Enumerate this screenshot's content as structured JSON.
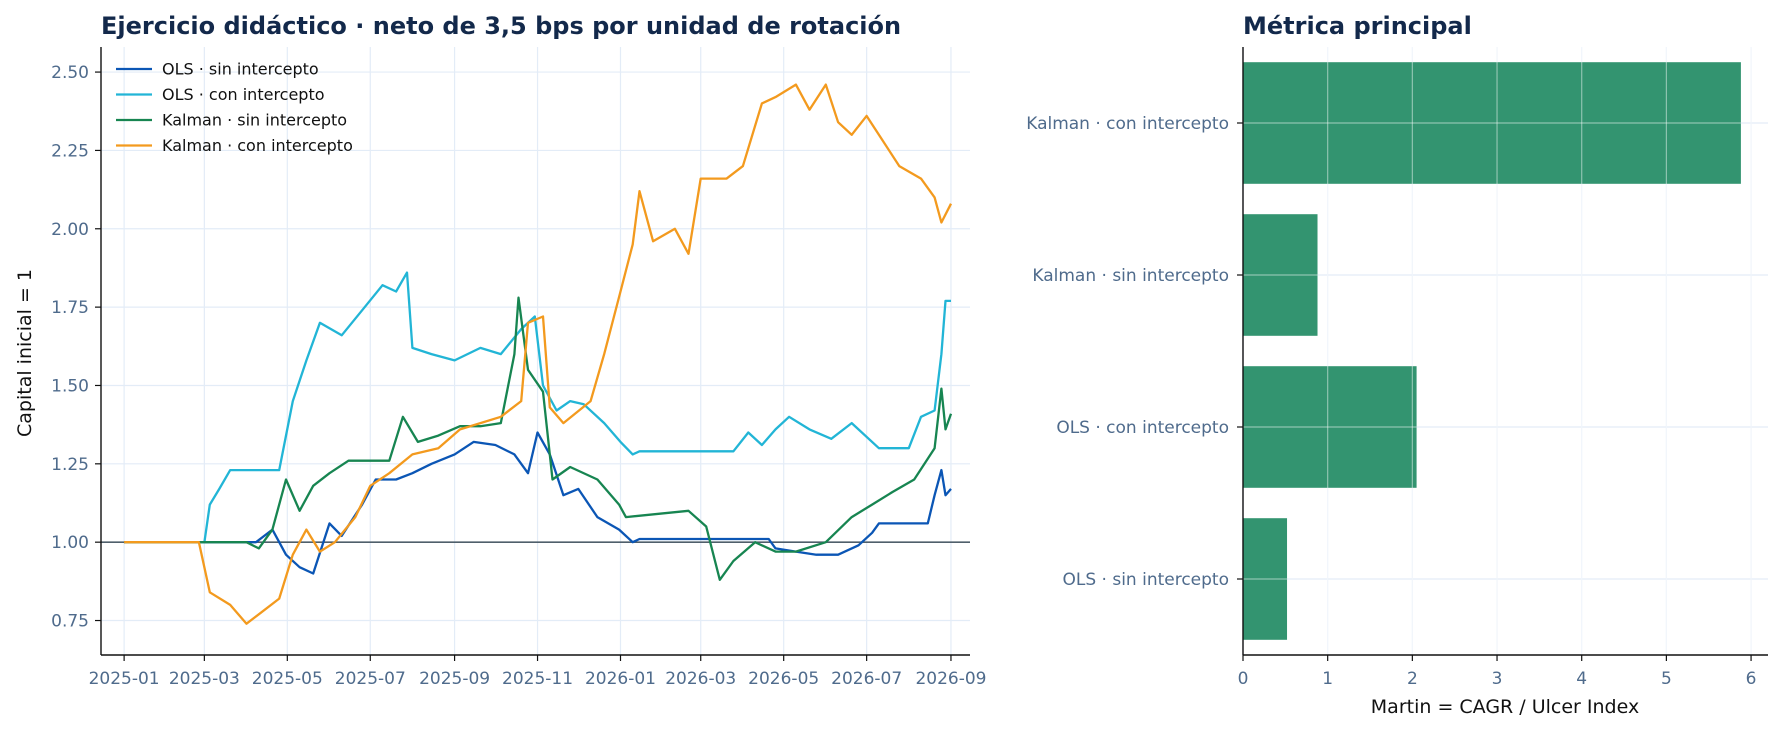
{
  "chart_data": [
    {
      "type": "line",
      "title": "Ejercicio didáctico · neto de 3,5 bps por unidad de rotación",
      "xlabel": "",
      "ylabel": "Capital inicial = 1",
      "xlim": [
        "2024-12-15",
        "2026-09-15"
      ],
      "ylim": [
        0.64,
        2.58
      ],
      "x_ticks": [
        "2025-01",
        "2025-03",
        "2025-05",
        "2025-07",
        "2025-09",
        "2025-11",
        "2026-01",
        "2026-03",
        "2026-05",
        "2026-07",
        "2026-09"
      ],
      "y_ticks": [
        "0.75",
        "1.00",
        "1.25",
        "1.50",
        "1.75",
        "2.00",
        "2.25",
        "2.50"
      ],
      "reference_line": 1.0,
      "grid": true,
      "legend_position": "top-left",
      "series": [
        {
          "name": "OLS · sin intercepto",
          "color": "#0b56b5",
          "points": [
            [
              "2025-01-01",
              1.0
            ],
            [
              "2025-04-08",
              1.0
            ],
            [
              "2025-04-20",
              1.04
            ],
            [
              "2025-04-30",
              0.96
            ],
            [
              "2025-05-10",
              0.92
            ],
            [
              "2025-05-20",
              0.9
            ],
            [
              "2025-06-01",
              1.06
            ],
            [
              "2025-06-10",
              1.02
            ],
            [
              "2025-06-25",
              1.12
            ],
            [
              "2025-07-05",
              1.2
            ],
            [
              "2025-07-20",
              1.2
            ],
            [
              "2025-08-01",
              1.22
            ],
            [
              "2025-08-15",
              1.25
            ],
            [
              "2025-09-01",
              1.28
            ],
            [
              "2025-09-15",
              1.32
            ],
            [
              "2025-10-01",
              1.31
            ],
            [
              "2025-10-15",
              1.28
            ],
            [
              "2025-10-25",
              1.22
            ],
            [
              "2025-11-01",
              1.35
            ],
            [
              "2025-11-10",
              1.28
            ],
            [
              "2025-11-20",
              1.15
            ],
            [
              "2025-12-01",
              1.17
            ],
            [
              "2025-12-15",
              1.08
            ],
            [
              "2025-12-31",
              1.04
            ],
            [
              "2026-01-10",
              1.0
            ],
            [
              "2026-01-15",
              1.01
            ],
            [
              "2026-03-01",
              1.01
            ],
            [
              "2026-04-20",
              1.01
            ],
            [
              "2026-04-25",
              0.98
            ],
            [
              "2026-05-10",
              0.97
            ],
            [
              "2026-05-25",
              0.96
            ],
            [
              "2026-06-10",
              0.96
            ],
            [
              "2026-06-25",
              0.99
            ],
            [
              "2026-07-05",
              1.03
            ],
            [
              "2026-07-10",
              1.06
            ],
            [
              "2026-08-15",
              1.06
            ],
            [
              "2026-08-20",
              1.15
            ],
            [
              "2026-08-25",
              1.23
            ],
            [
              "2026-08-28",
              1.15
            ],
            [
              "2026-09-01",
              1.17
            ]
          ]
        },
        {
          "name": "OLS · con intercepto",
          "color": "#22b5d6",
          "points": [
            [
              "2025-01-01",
              1.0
            ],
            [
              "2025-03-01",
              1.0
            ],
            [
              "2025-03-05",
              1.12
            ],
            [
              "2025-03-12",
              1.17
            ],
            [
              "2025-03-20",
              1.23
            ],
            [
              "2025-04-25",
              1.23
            ],
            [
              "2025-05-05",
              1.45
            ],
            [
              "2025-05-15",
              1.58
            ],
            [
              "2025-05-25",
              1.7
            ],
            [
              "2025-06-10",
              1.66
            ],
            [
              "2025-06-25",
              1.74
            ],
            [
              "2025-07-10",
              1.82
            ],
            [
              "2025-07-20",
              1.8
            ],
            [
              "2025-07-28",
              1.86
            ],
            [
              "2025-08-01",
              1.62
            ],
            [
              "2025-08-15",
              1.6
            ],
            [
              "2025-09-01",
              1.58
            ],
            [
              "2025-09-20",
              1.62
            ],
            [
              "2025-10-05",
              1.6
            ],
            [
              "2025-10-20",
              1.68
            ],
            [
              "2025-10-30",
              1.72
            ],
            [
              "2025-11-05",
              1.5
            ],
            [
              "2025-11-15",
              1.42
            ],
            [
              "2025-11-25",
              1.45
            ],
            [
              "2025-12-05",
              1.44
            ],
            [
              "2025-12-20",
              1.38
            ],
            [
              "2026-01-01",
              1.32
            ],
            [
              "2026-01-10",
              1.28
            ],
            [
              "2026-01-15",
              1.29
            ],
            [
              "2026-03-25",
              1.29
            ],
            [
              "2026-04-05",
              1.35
            ],
            [
              "2026-04-15",
              1.31
            ],
            [
              "2026-04-25",
              1.36
            ],
            [
              "2026-05-05",
              1.4
            ],
            [
              "2026-05-20",
              1.36
            ],
            [
              "2026-06-05",
              1.33
            ],
            [
              "2026-06-20",
              1.38
            ],
            [
              "2026-07-10",
              1.3
            ],
            [
              "2026-08-01",
              1.3
            ],
            [
              "2026-08-10",
              1.4
            ],
            [
              "2026-08-20",
              1.42
            ],
            [
              "2026-08-25",
              1.6
            ],
            [
              "2026-08-28",
              1.77
            ],
            [
              "2026-09-01",
              1.77
            ]
          ]
        },
        {
          "name": "Kalman · sin intercepto",
          "color": "#178551",
          "points": [
            [
              "2025-01-01",
              1.0
            ],
            [
              "2025-04-01",
              1.0
            ],
            [
              "2025-04-10",
              0.98
            ],
            [
              "2025-04-20",
              1.04
            ],
            [
              "2025-04-30",
              1.2
            ],
            [
              "2025-05-10",
              1.1
            ],
            [
              "2025-05-20",
              1.18
            ],
            [
              "2025-06-01",
              1.22
            ],
            [
              "2025-06-15",
              1.26
            ],
            [
              "2025-07-15",
              1.26
            ],
            [
              "2025-07-25",
              1.4
            ],
            [
              "2025-08-05",
              1.32
            ],
            [
              "2025-08-20",
              1.34
            ],
            [
              "2025-09-05",
              1.37
            ],
            [
              "2025-09-20",
              1.37
            ],
            [
              "2025-10-05",
              1.38
            ],
            [
              "2025-10-15",
              1.6
            ],
            [
              "2025-10-18",
              1.78
            ],
            [
              "2025-10-25",
              1.55
            ],
            [
              "2025-11-05",
              1.48
            ],
            [
              "2025-11-12",
              1.2
            ],
            [
              "2025-11-25",
              1.24
            ],
            [
              "2025-12-15",
              1.2
            ],
            [
              "2025-12-31",
              1.12
            ],
            [
              "2026-01-05",
              1.08
            ],
            [
              "2026-02-20",
              1.1
            ],
            [
              "2026-03-05",
              1.05
            ],
            [
              "2026-03-15",
              0.88
            ],
            [
              "2026-03-25",
              0.94
            ],
            [
              "2026-04-10",
              1.0
            ],
            [
              "2026-04-25",
              0.97
            ],
            [
              "2026-05-10",
              0.97
            ],
            [
              "2026-06-01",
              1.0
            ],
            [
              "2026-06-20",
              1.08
            ],
            [
              "2026-07-05",
              1.12
            ],
            [
              "2026-07-20",
              1.16
            ],
            [
              "2026-08-05",
              1.2
            ],
            [
              "2026-08-20",
              1.3
            ],
            [
              "2026-08-25",
              1.49
            ],
            [
              "2026-08-28",
              1.36
            ],
            [
              "2026-09-01",
              1.41
            ]
          ]
        },
        {
          "name": "Kalman · con intercepto",
          "color": "#f39a1e",
          "points": [
            [
              "2025-01-01",
              1.0
            ],
            [
              "2025-02-25",
              1.0
            ],
            [
              "2025-03-05",
              0.84
            ],
            [
              "2025-03-20",
              0.8
            ],
            [
              "2025-04-01",
              0.74
            ],
            [
              "2025-04-10",
              0.77
            ],
            [
              "2025-04-25",
              0.82
            ],
            [
              "2025-05-05",
              0.96
            ],
            [
              "2025-05-15",
              1.04
            ],
            [
              "2025-05-25",
              0.97
            ],
            [
              "2025-06-05",
              1.0
            ],
            [
              "2025-06-20",
              1.08
            ],
            [
              "2025-07-01",
              1.18
            ],
            [
              "2025-07-15",
              1.22
            ],
            [
              "2025-08-01",
              1.28
            ],
            [
              "2025-08-20",
              1.3
            ],
            [
              "2025-09-05",
              1.36
            ],
            [
              "2025-09-20",
              1.38
            ],
            [
              "2025-10-05",
              1.4
            ],
            [
              "2025-10-20",
              1.45
            ],
            [
              "2025-10-25",
              1.7
            ],
            [
              "2025-11-05",
              1.72
            ],
            [
              "2025-11-10",
              1.43
            ],
            [
              "2025-11-20",
              1.38
            ],
            [
              "2025-12-10",
              1.45
            ],
            [
              "2025-12-20",
              1.6
            ],
            [
              "2026-01-01",
              1.8
            ],
            [
              "2026-01-10",
              1.95
            ],
            [
              "2026-01-15",
              2.12
            ],
            [
              "2026-01-25",
              1.96
            ],
            [
              "2026-02-10",
              2.0
            ],
            [
              "2026-02-20",
              1.92
            ],
            [
              "2026-03-01",
              2.16
            ],
            [
              "2026-03-20",
              2.16
            ],
            [
              "2026-04-01",
              2.2
            ],
            [
              "2026-04-15",
              2.4
            ],
            [
              "2026-04-25",
              2.42
            ],
            [
              "2026-05-10",
              2.46
            ],
            [
              "2026-05-20",
              2.38
            ],
            [
              "2026-06-01",
              2.46
            ],
            [
              "2026-06-10",
              2.34
            ],
            [
              "2026-06-20",
              2.3
            ],
            [
              "2026-07-01",
              2.36
            ],
            [
              "2026-07-10",
              2.3
            ],
            [
              "2026-07-25",
              2.2
            ],
            [
              "2026-08-10",
              2.16
            ],
            [
              "2026-08-20",
              2.1
            ],
            [
              "2026-08-25",
              2.02
            ],
            [
              "2026-09-01",
              2.08
            ]
          ]
        }
      ]
    },
    {
      "type": "bar",
      "orientation": "horizontal",
      "title": "Métrica principal",
      "xlabel": "Martin = CAGR / Ulcer Index",
      "ylabel": "",
      "xlim": [
        0,
        6.2
      ],
      "x_ticks": [
        "0",
        "1",
        "2",
        "3",
        "4",
        "5",
        "6"
      ],
      "grid": true,
      "color": "#339470",
      "categories": [
        "Kalman · con intercepto",
        "Kalman · sin intercepto",
        "OLS · con intercepto",
        "OLS · sin intercepto"
      ],
      "values": [
        5.88,
        0.88,
        2.05,
        0.52
      ]
    }
  ]
}
